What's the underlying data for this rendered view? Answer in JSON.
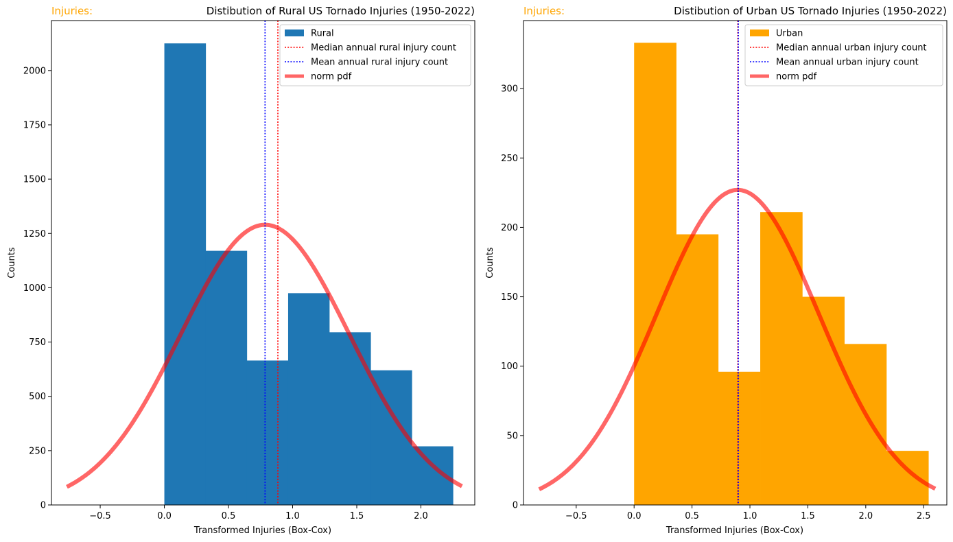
{
  "chart_data": [
    {
      "type": "bar",
      "corner_label": "Injuries:",
      "title": "Distibution of Rural US Tornado Injuries (1950-2022)",
      "xlabel": "Transformed Injuries (Box-Cox)",
      "ylabel": "Counts",
      "xlim": [
        -0.88,
        2.42
      ],
      "ylim": [
        0,
        2230
      ],
      "xticks": [
        -0.5,
        0.0,
        0.5,
        1.0,
        1.5,
        2.0
      ],
      "xtick_labels": [
        "−0.5",
        "0.0",
        "0.5",
        "1.0",
        "1.5",
        "2.0"
      ],
      "yticks": [
        0,
        250,
        500,
        750,
        1000,
        1250,
        1500,
        1750,
        2000
      ],
      "ytick_labels": [
        "0",
        "250",
        "500",
        "750",
        "1000",
        "1250",
        "1500",
        "1750",
        "2000"
      ],
      "bin_edges": [
        0.0,
        0.322,
        0.643,
        0.965,
        1.286,
        1.608,
        1.929,
        2.25
      ],
      "values": [
        2125,
        1170,
        665,
        975,
        795,
        620,
        270
      ],
      "bar_color": "#1f77b4",
      "median": 0.885,
      "mean": 0.785,
      "norm_pdf": {
        "mu": 0.785,
        "sigma": 0.66,
        "peak": 1290,
        "x_range": [
          -0.76,
          2.32
        ],
        "color": "#ff0000",
        "alpha": 0.6
      },
      "legend": {
        "placement": "top-right",
        "entries": [
          {
            "label": "Rural",
            "kind": "patch",
            "color": "#1f77b4"
          },
          {
            "label": "Median annual rural injury count",
            "kind": "dotted",
            "color": "#ff0000"
          },
          {
            "label": "Mean annual rural injury count",
            "kind": "dotted",
            "color": "#0000ff"
          },
          {
            "label": "norm pdf",
            "kind": "thick",
            "color": "#ff6666"
          }
        ]
      }
    },
    {
      "type": "bar",
      "corner_label": "Injuries:",
      "title": "Distibution of Urban US Tornado Injuries (1950-2022)",
      "xlabel": "Transformed Injuries (Box-Cox)",
      "ylabel": "Counts",
      "xlim": [
        -0.955,
        2.7
      ],
      "ylim": [
        0,
        349
      ],
      "xticks": [
        -0.5,
        0.0,
        0.5,
        1.0,
        1.5,
        2.0,
        2.5
      ],
      "xtick_labels": [
        "−0.5",
        "0.0",
        "0.5",
        "1.0",
        "1.5",
        "2.0",
        "2.5"
      ],
      "yticks": [
        0,
        50,
        100,
        150,
        200,
        250,
        300
      ],
      "ytick_labels": [
        "0",
        "50",
        "100",
        "150",
        "200",
        "250",
        "300"
      ],
      "bin_edges": [
        0.0,
        0.363,
        0.726,
        1.089,
        1.452,
        1.815,
        2.178,
        2.541
      ],
      "values": [
        333,
        195,
        96,
        211,
        150,
        116,
        39
      ],
      "bar_color": "#ffa500",
      "median": 0.895,
      "mean": 0.9,
      "norm_pdf": {
        "mu": 0.895,
        "sigma": 0.7,
        "peak": 227,
        "x_range": [
          -0.82,
          2.6
        ],
        "color": "#ff0000",
        "alpha": 0.6
      },
      "legend": {
        "placement": "top-right",
        "entries": [
          {
            "label": "Urban",
            "kind": "patch",
            "color": "#ffa500"
          },
          {
            "label": "Median annual urban injury count",
            "kind": "dotted",
            "color": "#ff0000"
          },
          {
            "label": "Mean annual urban injury count",
            "kind": "dotted",
            "color": "#0000ff"
          },
          {
            "label": "norm pdf",
            "kind": "thick",
            "color": "#ff6666"
          }
        ]
      }
    }
  ],
  "colors": {
    "corner_label": "#ffa500",
    "median_line": "#ff0000",
    "mean_line": "#0000ff",
    "axis": "#000000"
  }
}
